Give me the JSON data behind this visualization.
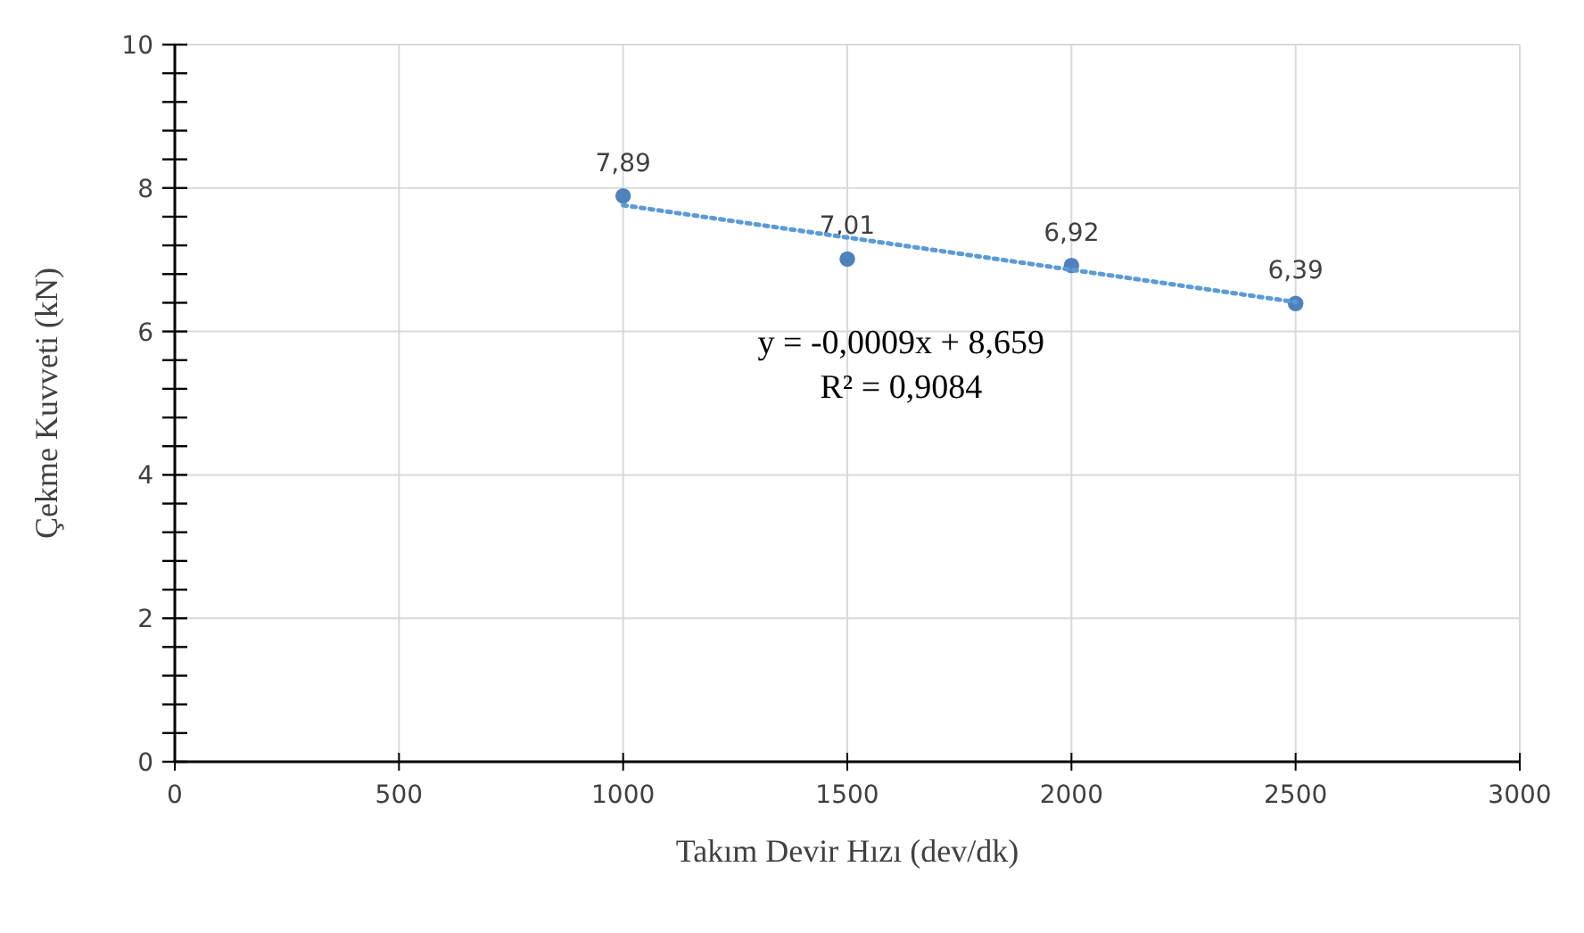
{
  "chart_data": {
    "type": "scatter",
    "xlabel": "Takım Devir Hızı (dev/dk)",
    "ylabel": "Çekme Kuvveti (kN)",
    "x": [
      1000,
      1500,
      2000,
      2500
    ],
    "series": [
      {
        "color": "#4f81bd",
        "values": [
          7.89,
          7.01,
          6.92,
          6.39
        ],
        "value_labels": [
          "7,89",
          "7,01",
          "6,92",
          "6,39"
        ],
        "marker": "circle"
      },
      {
        "type": "line",
        "color": "#5b9bd5",
        "x": [
          1000,
          2500
        ],
        "values": [
          7.76,
          6.41
        ],
        "line_style": "dotted",
        "marker": "none"
      }
    ],
    "annotations": [
      "y = -0,0009x + 8,659",
      "R² = 0,9084"
    ],
    "xlim": [
      0,
      3000
    ],
    "xticks": [
      0,
      500,
      1000,
      1500,
      2000,
      2500,
      3000
    ],
    "ylim": [
      0,
      10
    ],
    "yticks": [
      0,
      {
        "value": 0.4,
        "label": null
      },
      {
        "value": 0.8,
        "label": null
      },
      {
        "value": 1.2,
        "label": null
      },
      {
        "value": 1.6,
        "label": null
      },
      2,
      {
        "value": 2.4,
        "label": null
      },
      {
        "value": 2.8,
        "label": null
      },
      {
        "value": 3.2,
        "label": null
      },
      {
        "value": 3.6,
        "label": null
      },
      4,
      {
        "value": 4.4,
        "label": null
      },
      {
        "value": 4.8,
        "label": null
      },
      {
        "value": 5.2,
        "label": null
      },
      {
        "value": 5.6,
        "label": null
      },
      6,
      {
        "value": 6.4,
        "label": null
      },
      {
        "value": 6.8,
        "label": null
      },
      {
        "value": 7.2,
        "label": null
      },
      {
        "value": 7.6,
        "label": null
      },
      8,
      {
        "value": 8.4,
        "label": null
      },
      {
        "value": 8.8,
        "label": null
      },
      {
        "value": 9.2,
        "label": null
      },
      {
        "value": 9.6,
        "label": null
      },
      10
    ],
    "grid": true
  }
}
